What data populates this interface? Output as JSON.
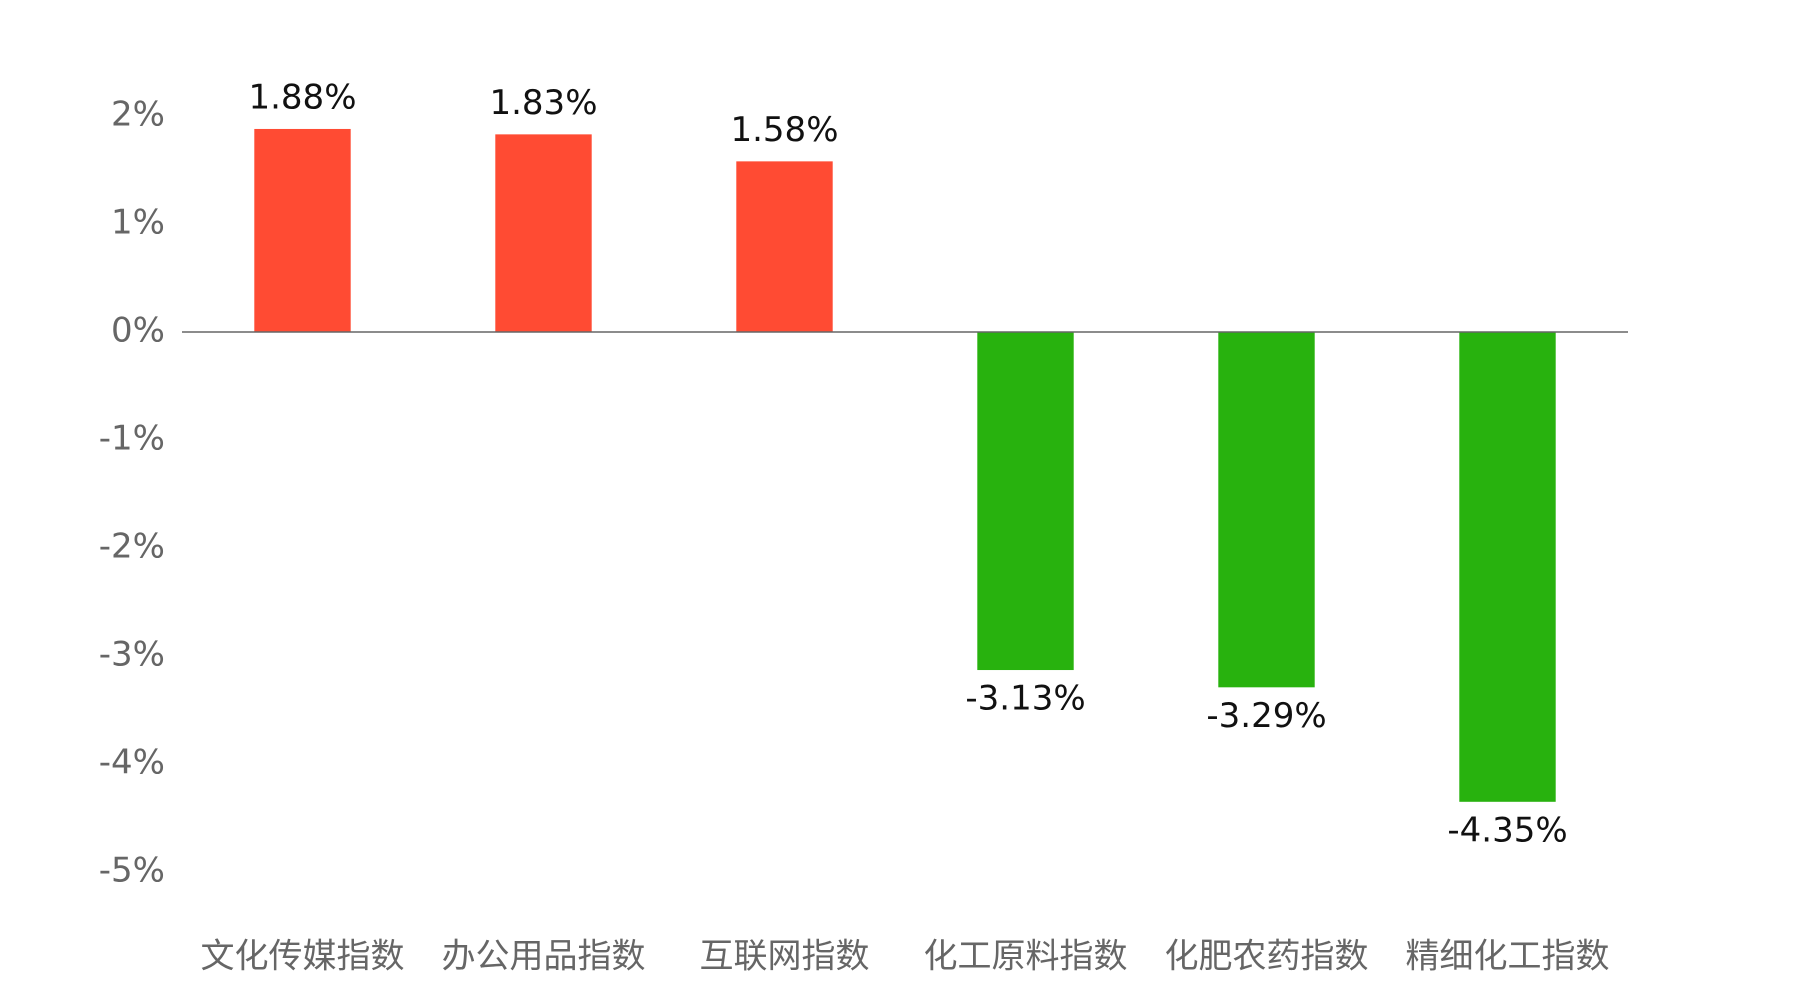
{
  "chart_data": {
    "type": "bar",
    "categories": [
      "文化传媒指数",
      "办公用品指数",
      "互联网指数",
      "化工原料指数",
      "化肥农药指数",
      "精细化工指数"
    ],
    "values": [
      1.88,
      1.83,
      1.58,
      -3.13,
      -3.29,
      -4.35
    ],
    "value_labels": [
      "1.88%",
      "1.83%",
      "1.58%",
      "-3.13%",
      "-3.29%",
      "-4.35%"
    ],
    "colors": [
      "#ff4b33",
      "#ff4b33",
      "#ff4b33",
      "#28b20e",
      "#28b20e",
      "#28b20e"
    ],
    "ylim": [
      -5,
      2
    ],
    "yticks": [
      {
        "value": 2,
        "label": "2%"
      },
      {
        "value": 1,
        "label": "1%"
      },
      {
        "value": 0,
        "label": "0%"
      },
      {
        "value": -1,
        "label": "-1%"
      },
      {
        "value": -2,
        "label": "-2%"
      },
      {
        "value": -3,
        "label": "-3%"
      },
      {
        "value": -4,
        "label": "-4%"
      },
      {
        "value": -5,
        "label": "-5%"
      }
    ],
    "grid": false
  }
}
